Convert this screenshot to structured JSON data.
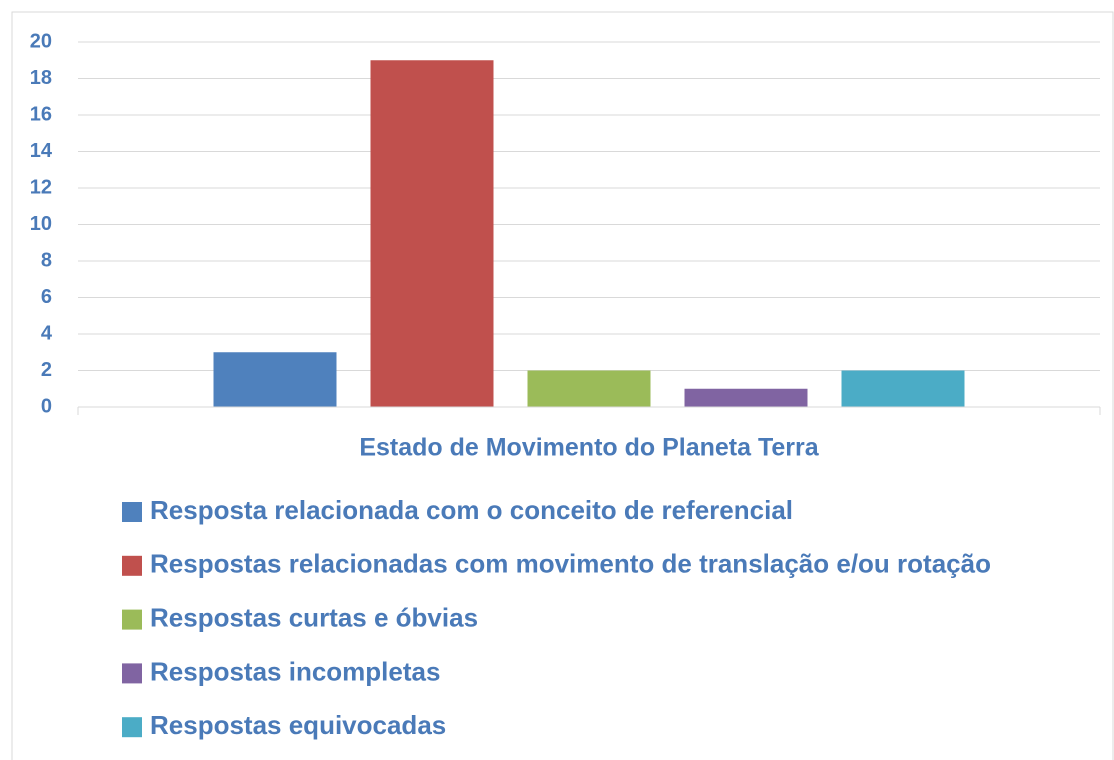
{
  "chart_data": {
    "type": "bar",
    "categories": [
      "Estado de Movimento do Planeta Terra"
    ],
    "series": [
      {
        "name": "Resposta relacionada com o conceito de referencial",
        "color": "#4f81bd",
        "values": [
          3
        ]
      },
      {
        "name": "Respostas relacionadas com movimento de translação e/ou rotação",
        "color": "#c0504d",
        "values": [
          19
        ]
      },
      {
        "name": "Respostas curtas e óbvias",
        "color": "#9bbb59",
        "values": [
          2
        ]
      },
      {
        "name": "Respostas incompletas",
        "color": "#8064a2",
        "values": [
          1
        ]
      },
      {
        "name": "Respostas equivocadas",
        "color": "#4bacc6",
        "values": [
          2
        ]
      }
    ],
    "ylim": [
      0,
      20
    ],
    "yticks": [
      0,
      2,
      4,
      6,
      8,
      10,
      12,
      14,
      16,
      18,
      20
    ],
    "grid": true,
    "legend": "bottom"
  }
}
